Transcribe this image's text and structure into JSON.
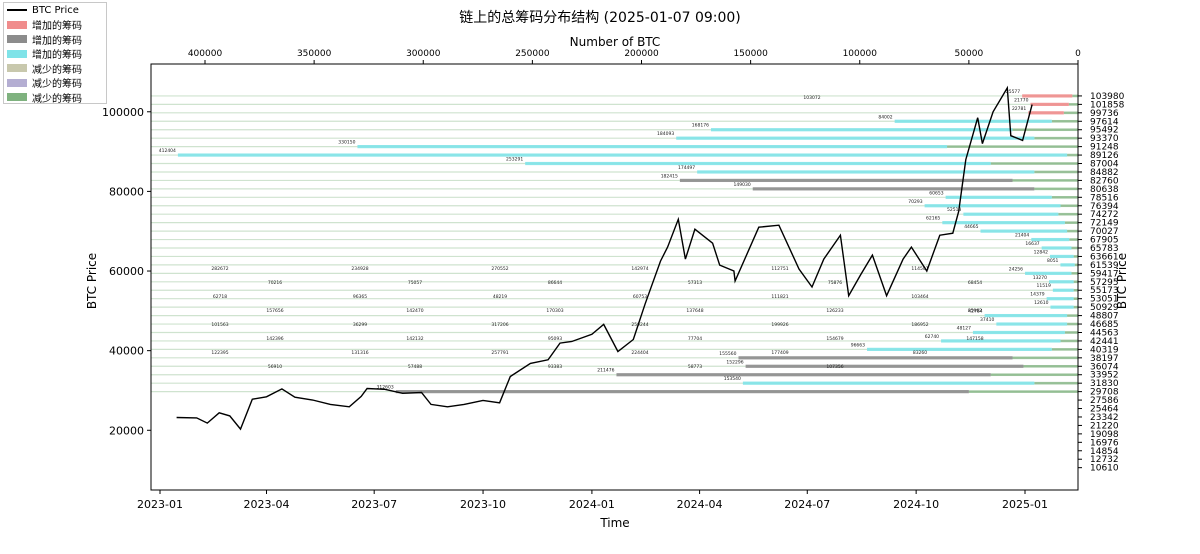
{
  "chart_data": {
    "type": "line",
    "title": "链上的总筹码分布结构 (2025-01-07 09:00)",
    "xlabel": "Time",
    "ylabel": "BTC Price",
    "ylabel_right": "BTC Price",
    "top_xlabel": "Number of BTC",
    "x_ticks": [
      "2023-01",
      "2023-04",
      "2023-07",
      "2023-10",
      "2024-01",
      "2024-04",
      "2024-07",
      "2024-10",
      "2025-01"
    ],
    "y_ticks": [
      "20000",
      "40000",
      "60000",
      "80000",
      "100000"
    ],
    "top_ticks": [
      "400000",
      "350000",
      "300000",
      "250000",
      "200000",
      "150000",
      "100000",
      "50000",
      "0"
    ],
    "right_ticks": [
      "103980",
      "101858",
      "99736",
      "97614",
      "95492",
      "93370",
      "91248",
      "89126",
      "87004",
      "84882",
      "82760",
      "80638",
      "78516",
      "76394",
      "74272",
      "72149",
      "70027",
      "67905",
      "65783",
      "63661",
      "61539",
      "59417",
      "57295",
      "55173",
      "53051",
      "50929",
      "48807",
      "46685",
      "44563",
      "42441",
      "40319",
      "38197",
      "36074",
      "33952",
      "31830",
      "29708",
      "27586",
      "25464",
      "23342",
      "21220",
      "19098",
      "16976",
      "14854",
      "12732",
      "10610"
    ],
    "ylim": [
      5000,
      112000
    ],
    "grid": false,
    "legend_position": "upper-left",
    "legend": [
      {
        "label": "BTC Price",
        "kind": "line",
        "color": "#000000"
      },
      {
        "label": "增加的筹码",
        "kind": "bar",
        "color": "#f08c8c"
      },
      {
        "label": "增加的筹码",
        "kind": "bar",
        "color": "#8c8c8c"
      },
      {
        "label": "增加的筹码",
        "kind": "bar",
        "color": "#7fe3e8"
      },
      {
        "label": "减少的筹码",
        "kind": "bar",
        "color": "#c8c8ad"
      },
      {
        "label": "减少的筹码",
        "kind": "bar",
        "color": "#b4aed2"
      },
      {
        "label": "减少的筹码",
        "kind": "bar",
        "color": "#7fb27f"
      }
    ],
    "price_series": [
      {
        "date": "2023-01-15",
        "price": 23200
      },
      {
        "date": "2023-02-01",
        "price": 23100
      },
      {
        "date": "2023-02-10",
        "price": 21800
      },
      {
        "date": "2023-02-20",
        "price": 24400
      },
      {
        "date": "2023-03-01",
        "price": 23600
      },
      {
        "date": "2023-03-10",
        "price": 20300
      },
      {
        "date": "2023-03-20",
        "price": 27800
      },
      {
        "date": "2023-04-01",
        "price": 28400
      },
      {
        "date": "2023-04-14",
        "price": 30400
      },
      {
        "date": "2023-04-25",
        "price": 28300
      },
      {
        "date": "2023-05-10",
        "price": 27600
      },
      {
        "date": "2023-05-25",
        "price": 26500
      },
      {
        "date": "2023-06-10",
        "price": 25900
      },
      {
        "date": "2023-06-20",
        "price": 28500
      },
      {
        "date": "2023-06-25",
        "price": 30500
      },
      {
        "date": "2023-07-10",
        "price": 30300
      },
      {
        "date": "2023-07-25",
        "price": 29300
      },
      {
        "date": "2023-08-10",
        "price": 29500
      },
      {
        "date": "2023-08-18",
        "price": 26500
      },
      {
        "date": "2023-09-01",
        "price": 25900
      },
      {
        "date": "2023-09-15",
        "price": 26500
      },
      {
        "date": "2023-10-01",
        "price": 27500
      },
      {
        "date": "2023-10-15",
        "price": 26900
      },
      {
        "date": "2023-10-24",
        "price": 33500
      },
      {
        "date": "2023-11-10",
        "price": 36800
      },
      {
        "date": "2023-11-25",
        "price": 37700
      },
      {
        "date": "2023-12-05",
        "price": 41900
      },
      {
        "date": "2023-12-15",
        "price": 42300
      },
      {
        "date": "2024-01-01",
        "price": 44100
      },
      {
        "date": "2024-01-11",
        "price": 46600
      },
      {
        "date": "2024-01-23",
        "price": 39800
      },
      {
        "date": "2024-02-05",
        "price": 42800
      },
      {
        "date": "2024-02-15",
        "price": 51800
      },
      {
        "date": "2024-02-28",
        "price": 62500
      },
      {
        "date": "2024-03-05",
        "price": 66000
      },
      {
        "date": "2024-03-14",
        "price": 73000
      },
      {
        "date": "2024-03-20",
        "price": 63000
      },
      {
        "date": "2024-03-28",
        "price": 70500
      },
      {
        "date": "2024-04-12",
        "price": 67000
      },
      {
        "date": "2024-04-18",
        "price": 61500
      },
      {
        "date": "2024-04-30",
        "price": 60000
      },
      {
        "date": "2024-05-01",
        "price": 57500
      },
      {
        "date": "2024-05-21",
        "price": 71000
      },
      {
        "date": "2024-06-07",
        "price": 71500
      },
      {
        "date": "2024-06-24",
        "price": 60500
      },
      {
        "date": "2024-07-05",
        "price": 56000
      },
      {
        "date": "2024-07-15",
        "price": 63000
      },
      {
        "date": "2024-07-29",
        "price": 69000
      },
      {
        "date": "2024-08-05",
        "price": 53800
      },
      {
        "date": "2024-08-15",
        "price": 59000
      },
      {
        "date": "2024-08-25",
        "price": 64000
      },
      {
        "date": "2024-09-06",
        "price": 53800
      },
      {
        "date": "2024-09-20",
        "price": 63000
      },
      {
        "date": "2024-09-27",
        "price": 66000
      },
      {
        "date": "2024-10-10",
        "price": 60000
      },
      {
        "date": "2024-10-21",
        "price": 69000
      },
      {
        "date": "2024-11-01",
        "price": 69500
      },
      {
        "date": "2024-11-06",
        "price": 75000
      },
      {
        "date": "2024-11-12",
        "price": 88000
      },
      {
        "date": "2024-11-22",
        "price": 98500
      },
      {
        "date": "2024-11-26",
        "price": 92000
      },
      {
        "date": "2024-12-05",
        "price": 100000
      },
      {
        "date": "2024-12-17",
        "price": 106000
      },
      {
        "date": "2024-12-20",
        "price": 94000
      },
      {
        "date": "2024-12-30",
        "price": 92800
      },
      {
        "date": "2025-01-07",
        "price": 101800
      }
    ],
    "distribution_bars": [
      {
        "price": 103980,
        "added": 25577,
        "removed": 2600,
        "added_color": "#f08c8c",
        "label": "25577"
      },
      {
        "price": 101858,
        "added": 21770,
        "removed": 4200,
        "added_color": "#f08c8c",
        "label": "21770"
      },
      {
        "price": 99736,
        "added": 22781,
        "removed": 6500,
        "added_color": "#f08c8c",
        "label": "22781"
      },
      {
        "price": 97614,
        "added": 84002,
        "removed": 12000,
        "added_color": "#7fe3e8",
        "label": "84002"
      },
      {
        "price": 95492,
        "added": 168176,
        "removed": 30000,
        "added_color": "#7fe3e8",
        "label": "168176"
      },
      {
        "price": 93370,
        "added": 184093,
        "removed": 20000,
        "added_color": "#7fe3e8",
        "label": "184093"
      },
      {
        "price": 91248,
        "added": 330150,
        "removed": 60000,
        "added_color": "#7fe3e8",
        "label": "330150"
      },
      {
        "price": 89126,
        "added": 412404,
        "removed": 5000,
        "added_color": "#7fe3e8",
        "label": "412404"
      },
      {
        "price": 87004,
        "added": 253291,
        "removed": 40000,
        "added_color": "#7fe3e8",
        "label": "253291"
      },
      {
        "price": 84882,
        "added": 174497,
        "removed": 20000,
        "added_color": "#7fe3e8",
        "label": "174497"
      },
      {
        "price": 82760,
        "added": 182415,
        "removed": 30000,
        "added_color": "#8c8c8c",
        "label": "182415"
      },
      {
        "price": 80638,
        "added": 149030,
        "removed": 20000,
        "added_color": "#8c8c8c",
        "label": "149030"
      },
      {
        "price": 78516,
        "added": 60653,
        "removed": 12000,
        "added_color": "#7fe3e8",
        "label": "60653"
      },
      {
        "price": 76394,
        "added": 70293,
        "removed": 8000,
        "added_color": "#7fe3e8",
        "label": "70293"
      },
      {
        "price": 74272,
        "added": 52513,
        "removed": 9000,
        "added_color": "#7fe3e8",
        "label": "52513"
      },
      {
        "price": 72149,
        "added": 62165,
        "removed": 6000,
        "added_color": "#7fe3e8",
        "label": "62165"
      },
      {
        "price": 70027,
        "added": 44665,
        "removed": 5000,
        "added_color": "#7fe3e8",
        "label": "44665"
      },
      {
        "price": 67905,
        "added": 21404,
        "removed": 4000,
        "added_color": "#7fe3e8",
        "label": "21404"
      },
      {
        "price": 65783,
        "added": 16637,
        "removed": 3000,
        "added_color": "#7fe3e8",
        "label": "16637"
      },
      {
        "price": 63661,
        "added": 12842,
        "removed": 2000,
        "added_color": "#7fe3e8",
        "label": "12842"
      },
      {
        "price": 61539,
        "added": 8051,
        "removed": 1500,
        "added_color": "#7fe3e8",
        "label": "8051"
      },
      {
        "price": 59417,
        "added": 24256,
        "removed": 3000,
        "added_color": "#7fe3e8",
        "label": "24256"
      },
      {
        "price": 57295,
        "added": 13270,
        "removed": 2000,
        "added_color": "#7fe3e8",
        "label": "13270"
      },
      {
        "price": 55173,
        "added": 11519,
        "removed": 2000,
        "added_color": "#7fe3e8",
        "label": "11519"
      },
      {
        "price": 53051,
        "added": 14379,
        "removed": 2000,
        "added_color": "#7fe3e8",
        "label": "14379"
      },
      {
        "price": 50929,
        "added": 12610,
        "removed": 2000,
        "added_color": "#7fe3e8",
        "label": "12610"
      },
      {
        "price": 48807,
        "added": 42784,
        "removed": 5000,
        "added_color": "#7fe3e8",
        "label": "42784"
      },
      {
        "price": 46685,
        "added": 37410,
        "removed": 5000,
        "added_color": "#7fe3e8",
        "label": "37410"
      },
      {
        "price": 44563,
        "added": 48127,
        "removed": 6000,
        "added_color": "#7fe3e8",
        "label": "48127"
      },
      {
        "price": 42441,
        "added": 62740,
        "removed": 8000,
        "added_color": "#7fe3e8",
        "label": "62740"
      },
      {
        "price": 40319,
        "added": 96663,
        "removed": 12000,
        "added_color": "#7fe3e8",
        "label": "96663"
      },
      {
        "price": 38197,
        "added": 155560,
        "removed": 30000,
        "added_color": "#8c8c8c",
        "label": "155560"
      },
      {
        "price": 36074,
        "added": 152296,
        "removed": 25000,
        "added_color": "#8c8c8c",
        "label": "152296"
      },
      {
        "price": 33952,
        "added": 211476,
        "removed": 40000,
        "added_color": "#8c8c8c",
        "label": "211476"
      },
      {
        "price": 31830,
        "added": 153540,
        "removed": 20000,
        "added_color": "#7fe3e8",
        "label": "153540"
      },
      {
        "price": 29708,
        "added": 312603,
        "removed": 50000,
        "added_color": "#8c8c8c",
        "label": "312603"
      }
    ],
    "annotations": [
      "103072",
      "25577",
      "21770",
      "22781",
      "84002",
      "168176",
      "184093",
      "330150",
      "412404",
      "253291",
      "174497",
      "182415",
      "149030",
      "60653",
      "70293",
      "62165",
      "44665",
      "21404",
      "16637",
      "12842",
      "8051",
      "24256",
      "13270",
      "11519",
      "14379",
      "12610",
      "42784",
      "37410",
      "48127",
      "62740",
      "96663",
      "155560",
      "152296",
      "211476",
      "153540",
      "312603",
      "205083",
      "282672",
      "234928",
      "270552",
      "142974",
      "112751",
      "114501",
      "70216",
      "75057",
      "86644",
      "57313",
      "75876",
      "68454",
      "62718",
      "96365",
      "48219",
      "60753",
      "111821",
      "103464",
      "157656",
      "142470",
      "170303",
      "137648",
      "126233",
      "85962",
      "101563",
      "36299",
      "317206",
      "259244",
      "199926",
      "186952",
      "142396",
      "142132",
      "95093",
      "77704",
      "154679",
      "147158",
      "122395",
      "131316",
      "257791",
      "224404",
      "177409",
      "83260",
      "56910",
      "57488",
      "93383",
      "58773",
      "107356"
    ]
  }
}
